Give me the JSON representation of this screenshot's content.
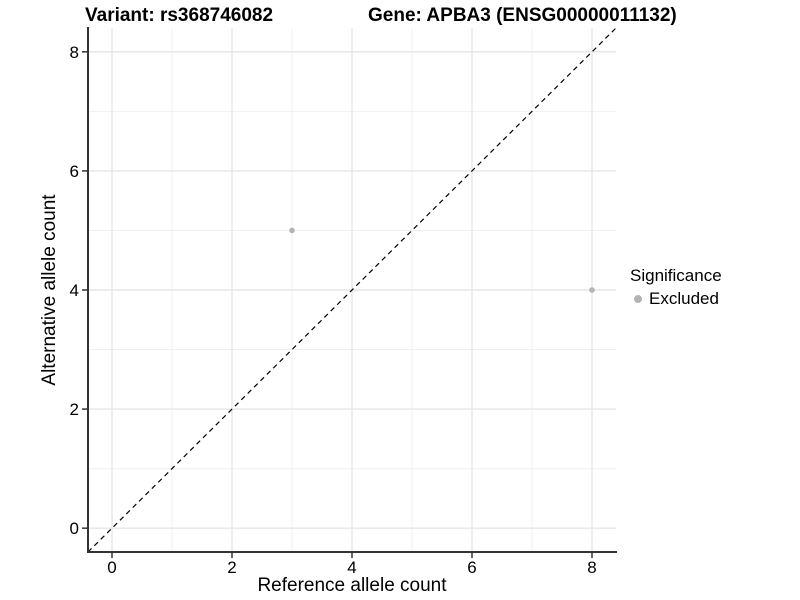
{
  "titles": {
    "variant": "Variant: rs368746082",
    "gene": "Gene: APBA3 (ENSG00000011132)"
  },
  "chart_data": {
    "type": "scatter",
    "title_left": "Variant: rs368746082",
    "title_right": "Gene: APBA3 (ENSG00000011132)",
    "xlabel": "Reference allele count",
    "ylabel": "Alternative allele count",
    "xlim": [
      -0.4,
      8.4
    ],
    "ylim": [
      -0.4,
      8.4
    ],
    "x_ticks": [
      0,
      2,
      4,
      6,
      8
    ],
    "y_ticks": [
      0,
      2,
      4,
      6,
      8
    ],
    "x_minor_ticks": [
      1,
      3,
      5,
      7
    ],
    "y_minor_ticks": [
      1,
      3,
      5,
      7
    ],
    "grid": true,
    "legend_position": "right",
    "reference_line": {
      "kind": "identity",
      "from": [
        -0.4,
        -0.4
      ],
      "to": [
        8.4,
        8.4
      ],
      "style": "dashed",
      "color": "#000000"
    },
    "series": [
      {
        "name": "Excluded",
        "color": "#b3b3b3",
        "points": [
          {
            "x": 3,
            "y": 5
          },
          {
            "x": 8,
            "y": 4
          }
        ]
      }
    ],
    "legend": {
      "title": "Significance",
      "items": [
        {
          "label": "Excluded",
          "color": "#b3b3b3"
        }
      ]
    }
  },
  "colors": {
    "background": "#ffffff",
    "axis_line": "#333333",
    "tick_mark": "#333333",
    "grid_major": "#e6e6e6",
    "grid_minor": "#f0f0f0",
    "tick_label": "#000000",
    "point": "#b3b3b3"
  }
}
